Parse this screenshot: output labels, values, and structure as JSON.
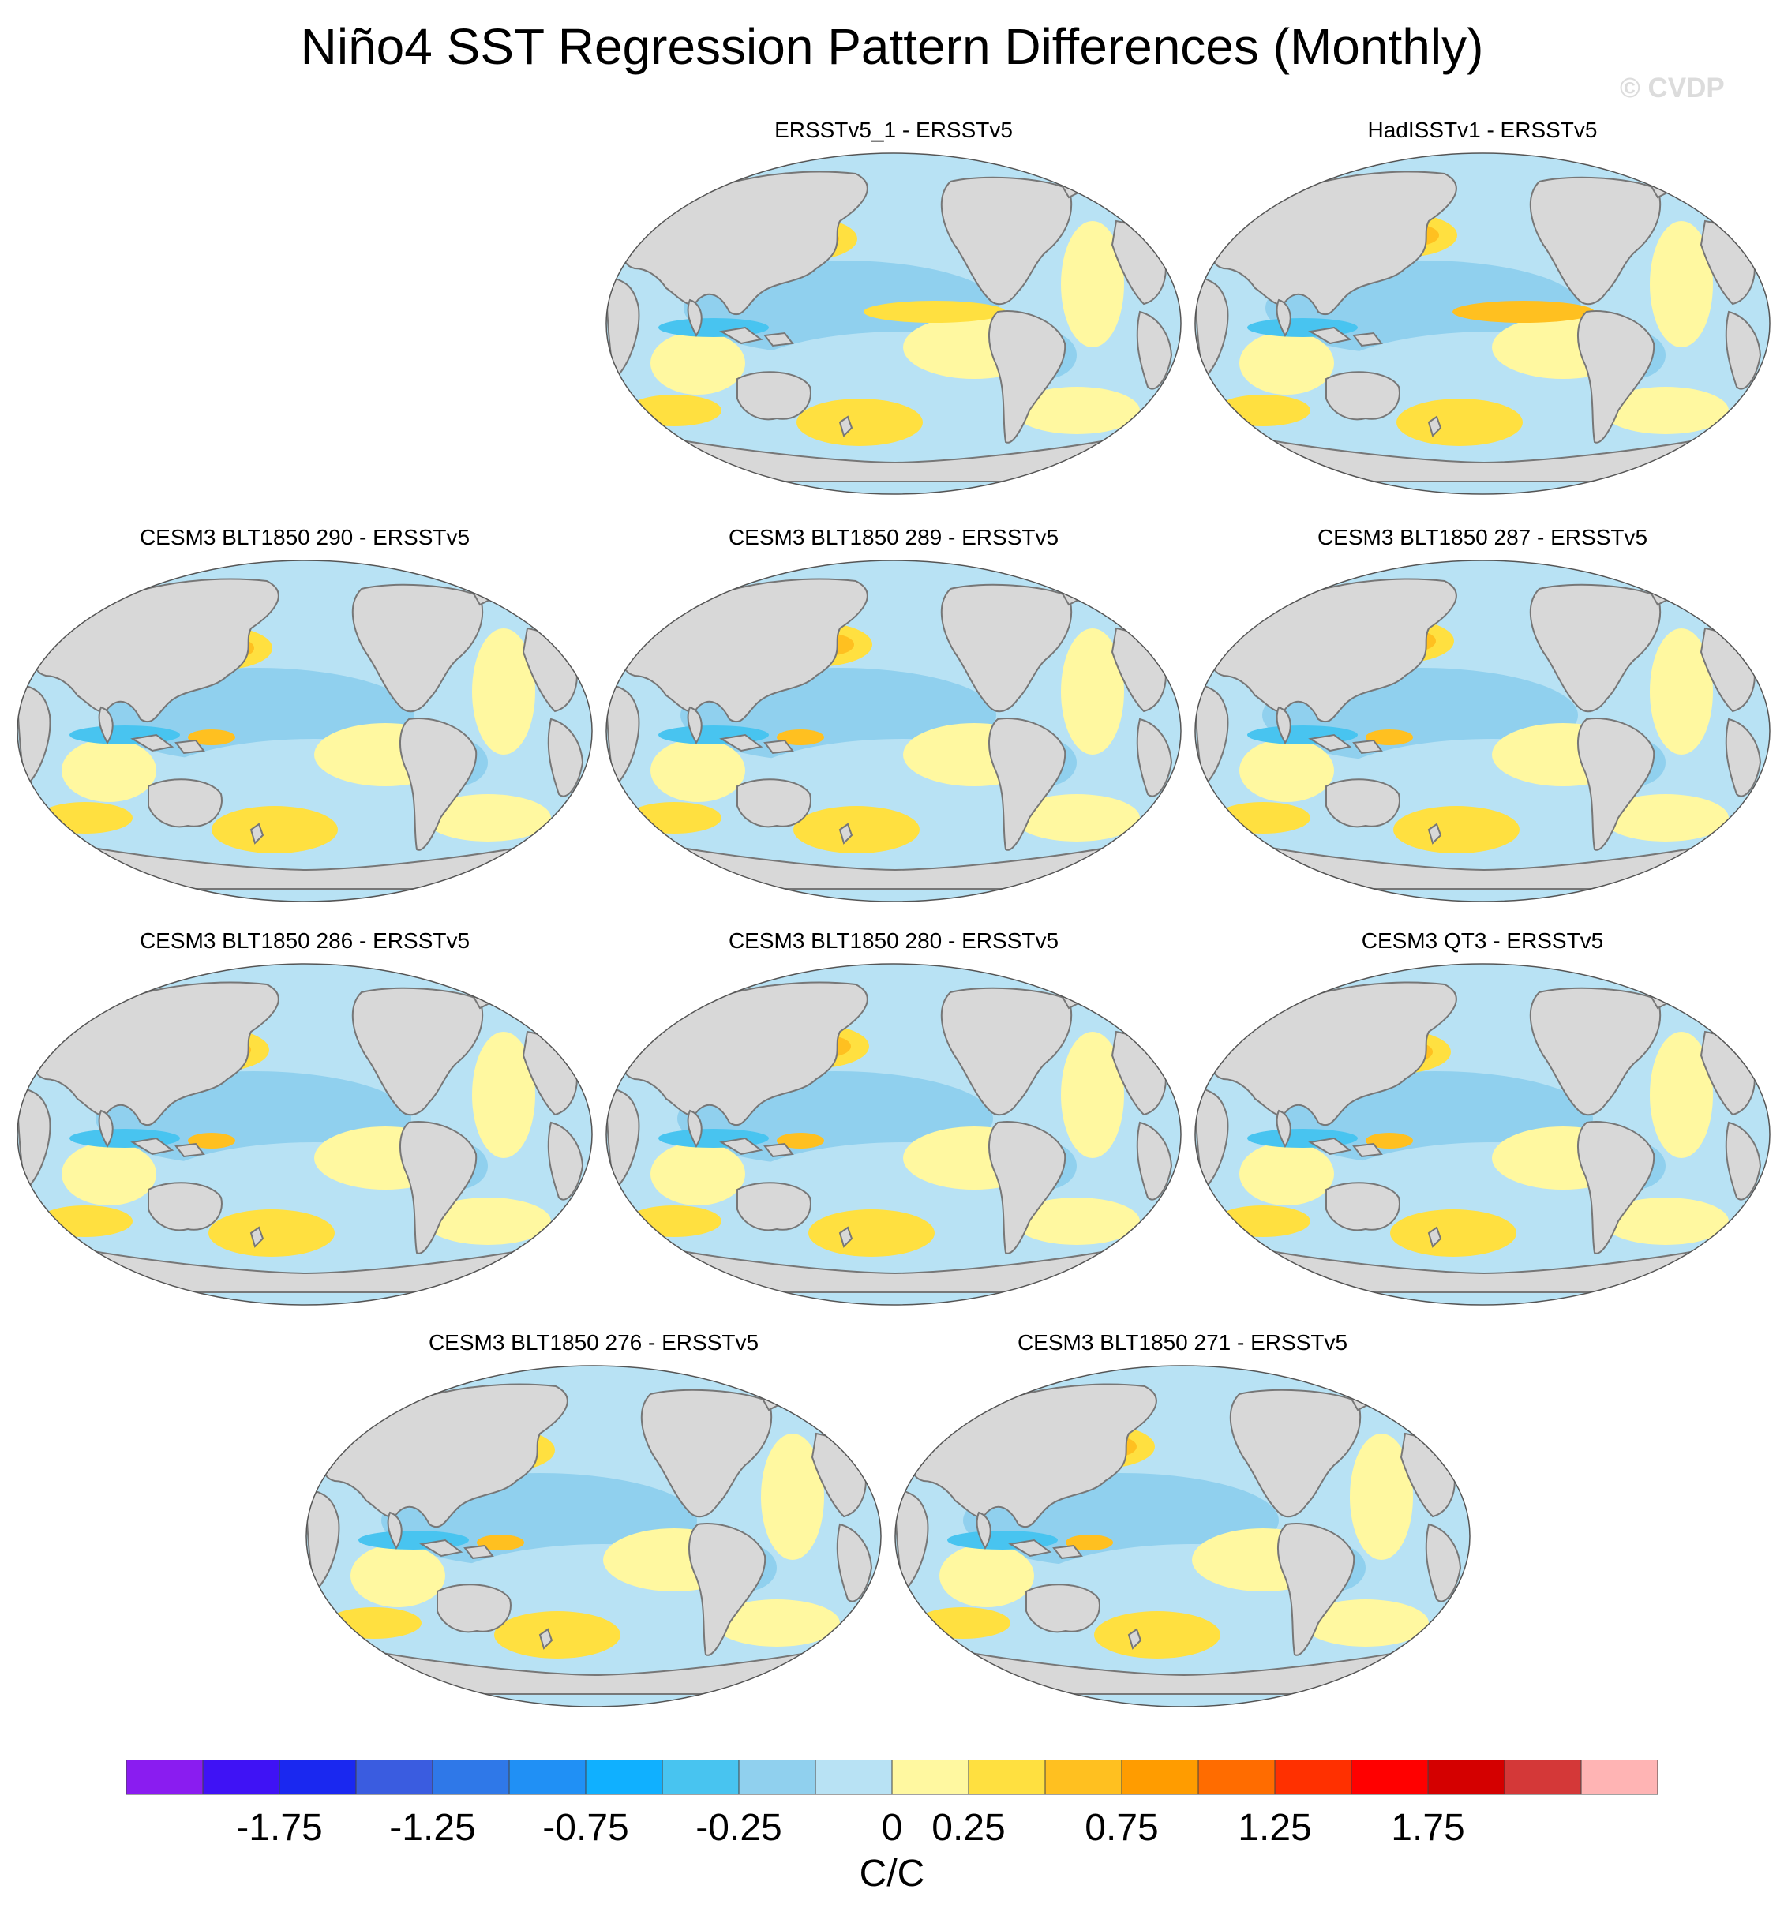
{
  "title": "Niño4 SST Regression Pattern Differences (Monthly)",
  "watermark": "© CVDP",
  "panels": [
    {
      "title": "ERSSTv5_1 - ERSSTv5",
      "variant": 0
    },
    {
      "title": "HadISSTv1 - ERSSTv5",
      "variant": 1
    },
    {
      "title": "CESM3 BLT1850 290 - ERSSTv5",
      "variant": 2
    },
    {
      "title": "CESM3 BLT1850 289 - ERSSTv5",
      "variant": 3
    },
    {
      "title": "CESM3 BLT1850 287 - ERSSTv5",
      "variant": 4
    },
    {
      "title": "CESM3 BLT1850 286 - ERSSTv5",
      "variant": 5
    },
    {
      "title": "CESM3 BLT1850 280 - ERSSTv5",
      "variant": 6
    },
    {
      "title": "CESM3 QT3 - ERSSTv5",
      "variant": 7
    },
    {
      "title": "CESM3 BLT1850 276 - ERSSTv5",
      "variant": 8
    },
    {
      "title": "CESM3 BLT1850 271 - ERSSTv5",
      "variant": 9
    }
  ],
  "colorbar": {
    "colors": [
      "#8a1cf0",
      "#3f12f5",
      "#1a28f0",
      "#3a5ce0",
      "#2f78e8",
      "#2090f5",
      "#10b0ff",
      "#48c4f0",
      "#90d0ee",
      "#b8e2f4",
      "#fff8a0",
      "#ffe040",
      "#ffc020",
      "#ff9c00",
      "#ff6c00",
      "#ff3000",
      "#ff0000",
      "#d40000",
      "#d43838",
      "#ffb4b4"
    ],
    "ticks": [
      "-1.75",
      "-1.25",
      "-0.75",
      "-0.25",
      "0",
      "0.25",
      "0.75",
      "1.25",
      "1.75"
    ],
    "units": "C/C"
  },
  "map_colors": {
    "land": "#d8d8d8",
    "coast": "#777777",
    "positive_light": "#fff8a0",
    "positive_mid": "#ffe040",
    "positive_strong": "#ffc020",
    "negative_light": "#b8e2f4",
    "negative_mid": "#90d0ee",
    "negative_strong": "#48c4f0"
  }
}
